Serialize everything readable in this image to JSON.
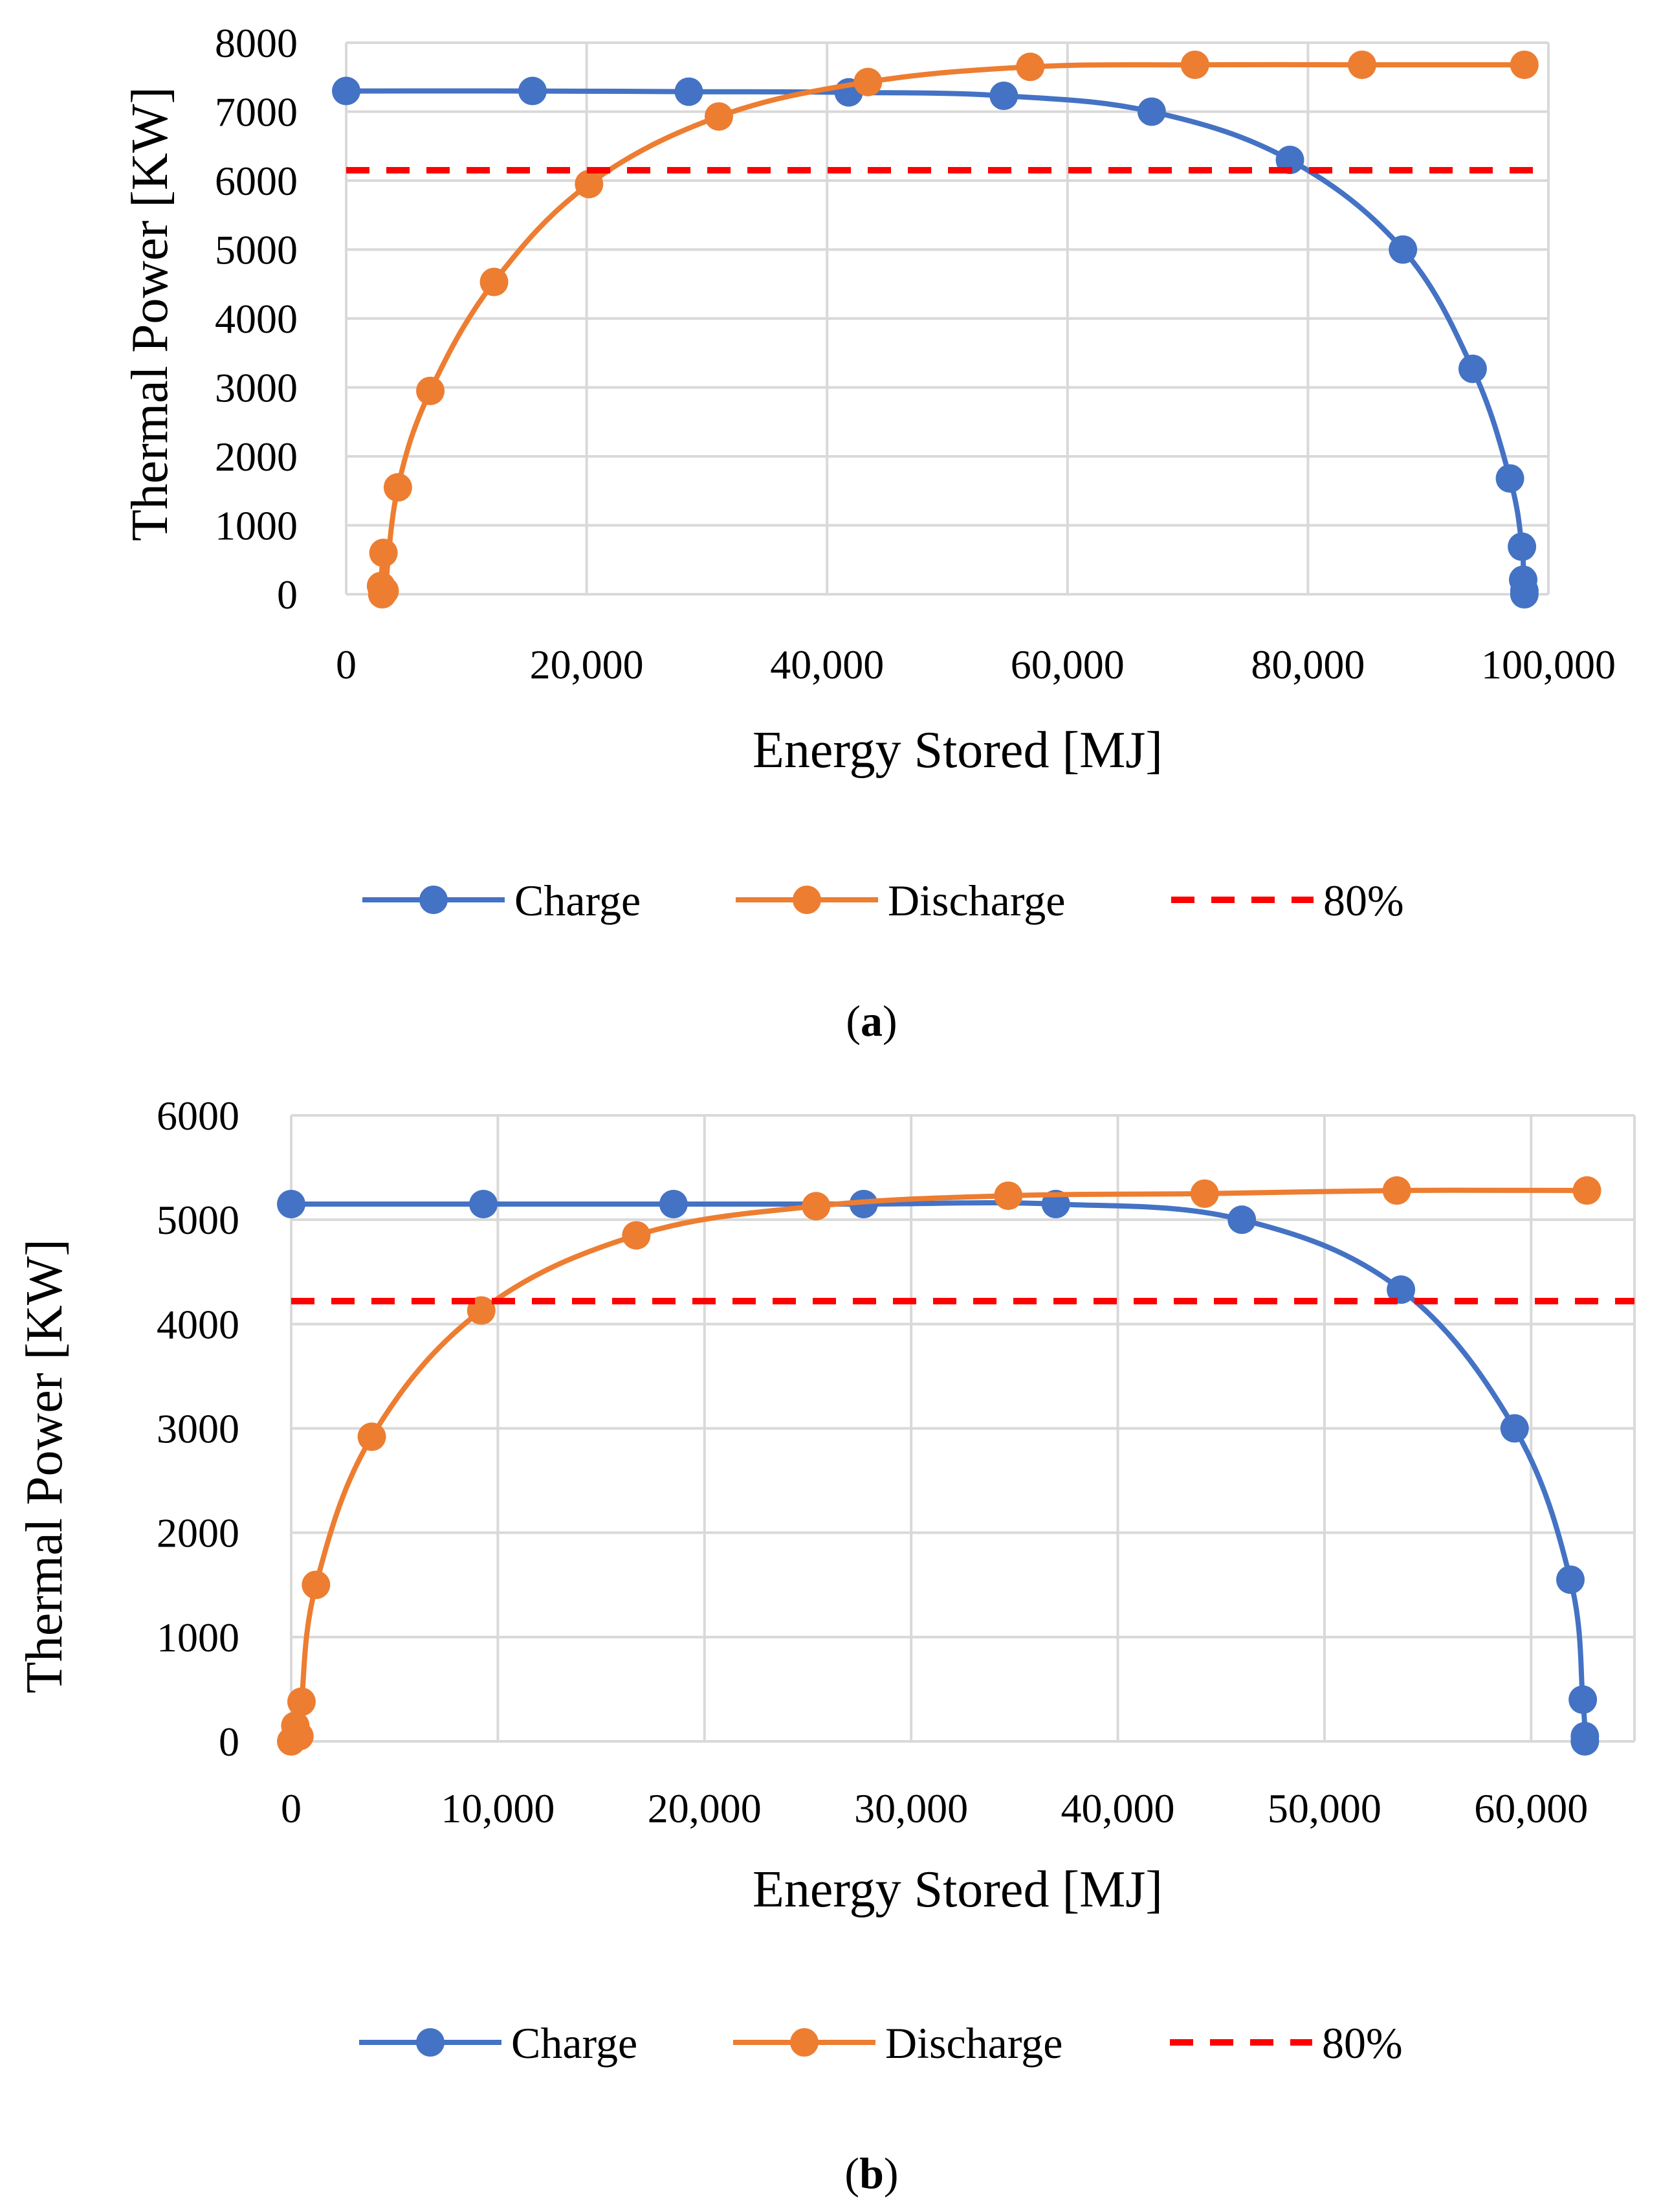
{
  "chart_data": [
    {
      "type": "line",
      "panel": "a",
      "caption": "a",
      "xlabel": "Energy Stored [MJ]",
      "ylabel": "Thermal Power [KW]",
      "xlim": [
        0,
        100000
      ],
      "ylim": [
        0,
        8000
      ],
      "xticks": [
        0,
        20000,
        40000,
        60000,
        80000,
        100000
      ],
      "xtick_labels": [
        "0",
        "20,000",
        "40,000",
        "60,000",
        "80,000",
        "100,000"
      ],
      "yticks": [
        0,
        1000,
        2000,
        3000,
        4000,
        5000,
        6000,
        7000,
        8000
      ],
      "ytick_labels": [
        "0",
        "1000",
        "2000",
        "3000",
        "4000",
        "5000",
        "6000",
        "7000",
        "8000"
      ],
      "grid": true,
      "legend_position": "bottom-center",
      "series": [
        {
          "name": "Charge",
          "color": "#4472c4",
          "style": "solid-markers",
          "x": [
            0,
            15500,
            28500,
            41800,
            54700,
            67000,
            78500,
            87900,
            93700,
            96800,
            97800,
            97900,
            98000,
            98000
          ],
          "y": [
            7300,
            7300,
            7290,
            7280,
            7230,
            7000,
            6300,
            5000,
            3270,
            1680,
            690,
            210,
            50,
            0
          ]
        },
        {
          "name": "Discharge",
          "color": "#ed7d31",
          "style": "solid-markers",
          "x": [
            3000,
            2900,
            3100,
            3200,
            4300,
            7000,
            12300,
            20200,
            31000,
            43400,
            56900,
            70600,
            84500,
            98000
          ],
          "y": [
            0,
            120,
            600,
            50,
            1550,
            2950,
            4530,
            5950,
            6930,
            7430,
            7650,
            7680,
            7680,
            7680
          ]
        },
        {
          "name": "80%",
          "color": "#ff0000",
          "style": "dashed",
          "x": [
            0,
            100000
          ],
          "y": [
            6150,
            6150
          ]
        }
      ]
    },
    {
      "type": "line",
      "panel": "b",
      "caption": "b",
      "xlabel": "Energy Stored [MJ]",
      "ylabel": "Thermal Power [KW]",
      "xlim": [
        0,
        65000
      ],
      "ylim": [
        0,
        6000
      ],
      "xticks": [
        0,
        10000,
        20000,
        30000,
        40000,
        50000,
        60000
      ],
      "xtick_labels": [
        "0",
        "10,000",
        "20,000",
        "30,000",
        "40,000",
        "50,000",
        "60,000"
      ],
      "yticks": [
        0,
        1000,
        2000,
        3000,
        4000,
        5000,
        6000
      ],
      "ytick_labels": [
        "0",
        "1000",
        "2000",
        "3000",
        "4000",
        "5000",
        "6000"
      ],
      "grid": true,
      "legend_position": "bottom-center",
      "series": [
        {
          "name": "Charge",
          "color": "#4472c4",
          "style": "solid-markers",
          "x": [
            0,
            9300,
            18500,
            27700,
            37000,
            46000,
            53700,
            59200,
            61900,
            62500,
            62600,
            62600
          ],
          "y": [
            5150,
            5150,
            5150,
            5150,
            5150,
            5000,
            4330,
            3000,
            1550,
            400,
            50,
            0
          ]
        },
        {
          "name": "Discharge",
          "color": "#ed7d31",
          "style": "solid-markers",
          "x": [
            0,
            200,
            400,
            500,
            1200,
            3900,
            9200,
            16700,
            25400,
            34700,
            44200,
            53500,
            62700
          ],
          "y": [
            0,
            150,
            50,
            380,
            1500,
            2920,
            4130,
            4850,
            5130,
            5230,
            5250,
            5280,
            5280
          ]
        },
        {
          "name": "80%",
          "color": "#ff0000",
          "style": "dashed",
          "x": [
            0,
            65000
          ],
          "y": [
            4220,
            4220
          ]
        }
      ]
    }
  ]
}
